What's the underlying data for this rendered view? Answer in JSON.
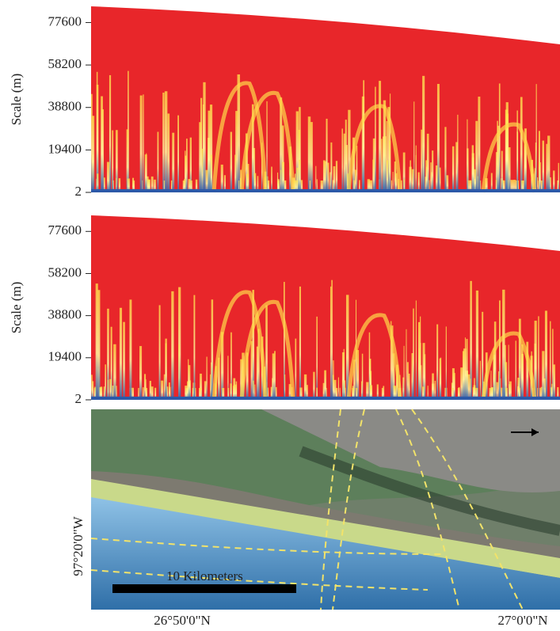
{
  "panels": [
    {
      "ylabel": "Scale (m)",
      "ylim": [
        2,
        85000
      ],
      "yticks": [
        2,
        19400,
        38800,
        58200,
        77600
      ]
    },
    {
      "ylabel": "Scale (m)",
      "ylim": [
        2,
        85000
      ],
      "yticks": [
        2,
        19400,
        38800,
        58200,
        77600
      ]
    }
  ],
  "map": {
    "scale_bar": "10 Kilometers",
    "lon_label": "97°20'0\"W",
    "lat_labels": [
      "26°50'0\"N",
      "27°0'0\"N"
    ]
  }
}
